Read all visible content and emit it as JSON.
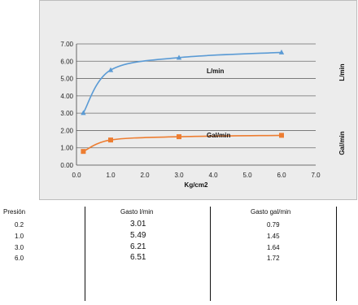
{
  "chart_data": {
    "type": "line",
    "xlabel": "Kg/cm2",
    "ylabel": "",
    "xlim": [
      0,
      7
    ],
    "ylim": [
      0,
      7
    ],
    "x_ticks": [
      "0.0",
      "1.0",
      "2.0",
      "3.0",
      "4.0",
      "5.0",
      "6.0",
      "7.0"
    ],
    "y_ticks": [
      "0.00",
      "1.00",
      "2.00",
      "3.00",
      "4.00",
      "5.00",
      "6.00",
      "7.00"
    ],
    "grid": "horizontal",
    "series": [
      {
        "name": "L/min",
        "label": "L/min",
        "side_label": "L/min",
        "color": "#5b9bd5",
        "marker": "triangle",
        "x": [
          0.2,
          1.0,
          3.0,
          6.0
        ],
        "y": [
          3.01,
          5.49,
          6.21,
          6.51
        ]
      },
      {
        "name": "Gal/min",
        "label": "Gal/min",
        "side_label": "Gal/min",
        "color": "#ed7d31",
        "marker": "square",
        "x": [
          0.2,
          1.0,
          3.0,
          6.0
        ],
        "y": [
          0.79,
          1.45,
          1.64,
          1.72
        ]
      }
    ]
  },
  "table": {
    "headers": [
      "Presión",
      "Gasto l/min",
      "Gasto gal/min"
    ],
    "rows": [
      [
        "0.2",
        "3.01",
        "0.79"
      ],
      [
        "1.0",
        "5.49",
        "1.45"
      ],
      [
        "3.0",
        "6.21",
        "1.64"
      ],
      [
        "6.0",
        "6.51",
        "1.72"
      ]
    ]
  }
}
